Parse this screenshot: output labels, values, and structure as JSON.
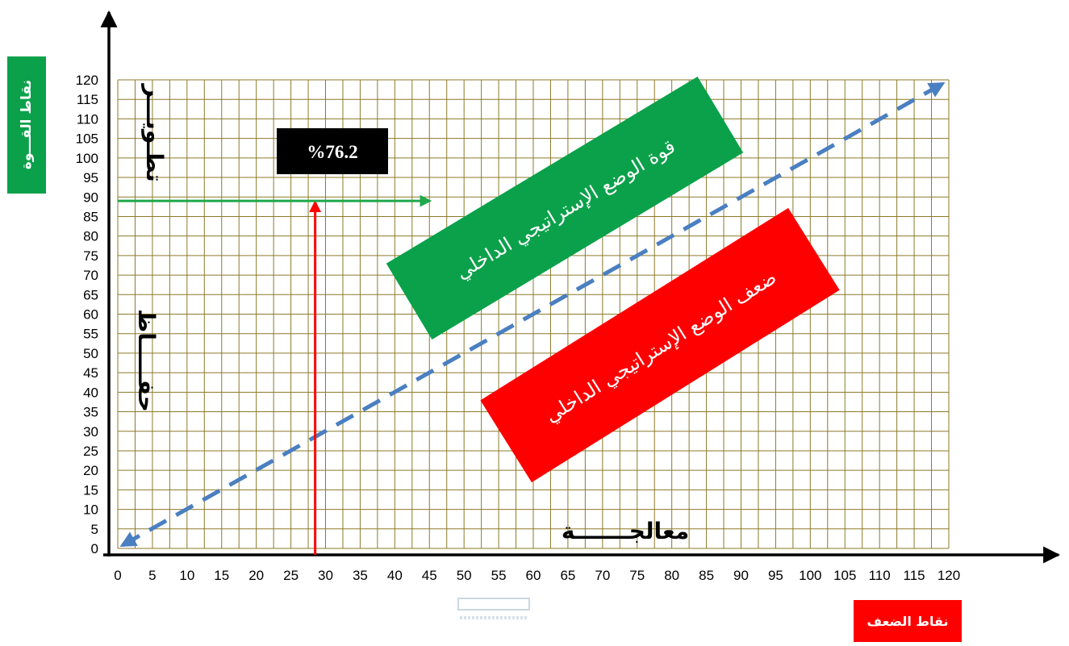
{
  "chart_data": {
    "type": "line",
    "title": "",
    "x_ticks": [
      0,
      5,
      10,
      15,
      20,
      25,
      30,
      35,
      40,
      45,
      50,
      55,
      60,
      65,
      70,
      75,
      80,
      85,
      90,
      95,
      100,
      105,
      110,
      115,
      120
    ],
    "y_ticks": [
      0,
      5,
      10,
      15,
      20,
      25,
      30,
      35,
      40,
      45,
      50,
      55,
      60,
      65,
      70,
      75,
      80,
      85,
      90,
      95,
      100,
      105,
      110,
      115,
      120
    ],
    "xlim": [
      0,
      120
    ],
    "ylim": [
      0,
      120
    ],
    "grid": true,
    "x_axis_label": "نقاط الضعف",
    "y_axis_label": "نقاط القـــوة",
    "diagonal": {
      "from": [
        0,
        0
      ],
      "to": [
        120,
        120
      ],
      "style": "dashed",
      "color": "#4a7fc1"
    },
    "result_value_label": "%76.2",
    "marker_vertical": {
      "x": 28.5,
      "y_from": 0,
      "y_to": 89,
      "color": "#ff0000"
    },
    "marker_horizontal": {
      "y": 89,
      "x_from": 0,
      "x_to": 45,
      "color": "#1ea84b"
    },
    "zones": {
      "upper": {
        "label": "قوة الوضع الإستراتيجي الداخلي",
        "color": "#0aa14a"
      },
      "lower": {
        "label": "ضعف الوضع الإستراتيجي الداخلي",
        "color": "#ff0000"
      }
    },
    "side_labels": {
      "develop": "تطـويـــر",
      "maintain": "حفـــــاظ",
      "treat": "معالجـــــــة"
    }
  },
  "colors": {
    "grid": "#8c7a2a",
    "axis": "#000000"
  }
}
